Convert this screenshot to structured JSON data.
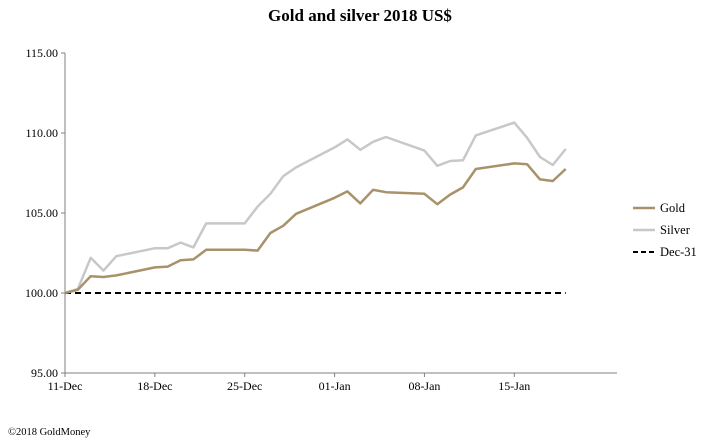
{
  "chart_data": {
    "type": "line",
    "title": "Gold and silver 2018  US$",
    "xlabel": "",
    "ylabel": "",
    "ylim": [
      95,
      115
    ],
    "yticks": [
      "95.00",
      "100.00",
      "105.00",
      "110.00",
      "115.00"
    ],
    "xticks": [
      "11-Dec",
      "18-Dec",
      "25-Dec",
      "01-Jan",
      "08-Jan",
      "15-Jan"
    ],
    "x_range_days": [
      0,
      43
    ],
    "grid": false,
    "legend_position": "right",
    "series": [
      {
        "name": "Gold",
        "color": "#a8926a",
        "style": "solid",
        "points": [
          [
            0,
            100.0
          ],
          [
            1,
            100.2
          ],
          [
            2,
            101.05
          ],
          [
            3,
            101.0
          ],
          [
            4,
            101.1
          ],
          [
            7,
            101.6
          ],
          [
            8,
            101.65
          ],
          [
            9,
            102.05
          ],
          [
            10,
            102.1
          ],
          [
            11,
            102.7
          ],
          [
            14,
            102.7
          ],
          [
            15,
            102.65
          ],
          [
            16,
            103.75
          ],
          [
            17,
            104.2
          ],
          [
            18,
            104.95
          ],
          [
            21,
            105.95
          ],
          [
            22,
            106.35
          ],
          [
            23,
            105.6
          ],
          [
            24,
            106.45
          ],
          [
            25,
            106.3
          ],
          [
            28,
            106.2
          ],
          [
            29,
            105.55
          ],
          [
            30,
            106.15
          ],
          [
            31,
            106.6
          ],
          [
            32,
            107.75
          ],
          [
            35,
            108.1
          ],
          [
            36,
            108.05
          ],
          [
            37,
            107.1
          ],
          [
            38,
            107.0
          ],
          [
            39,
            107.75
          ]
        ]
      },
      {
        "name": "Silver",
        "color": "#c8c8c8",
        "style": "solid",
        "points": [
          [
            0,
            100.0
          ],
          [
            1,
            100.25
          ],
          [
            2,
            102.2
          ],
          [
            3,
            101.4
          ],
          [
            4,
            102.3
          ],
          [
            7,
            102.8
          ],
          [
            8,
            102.8
          ],
          [
            9,
            103.15
          ],
          [
            10,
            102.85
          ],
          [
            11,
            104.35
          ],
          [
            14,
            104.35
          ],
          [
            15,
            105.4
          ],
          [
            16,
            106.2
          ],
          [
            17,
            107.3
          ],
          [
            18,
            107.85
          ],
          [
            21,
            109.1
          ],
          [
            22,
            109.6
          ],
          [
            23,
            108.95
          ],
          [
            24,
            109.45
          ],
          [
            25,
            109.75
          ],
          [
            28,
            108.9
          ],
          [
            29,
            107.95
          ],
          [
            30,
            108.25
          ],
          [
            31,
            108.3
          ],
          [
            32,
            109.85
          ],
          [
            35,
            110.65
          ],
          [
            36,
            109.7
          ],
          [
            37,
            108.5
          ],
          [
            38,
            108.0
          ],
          [
            39,
            109.0
          ]
        ]
      },
      {
        "name": "Dec-31",
        "color": "#000000",
        "style": "dashed",
        "points": [
          [
            0,
            100.0
          ],
          [
            39,
            100.0
          ]
        ]
      }
    ]
  },
  "footer": {
    "credit": "©2018 GoldMoney"
  }
}
